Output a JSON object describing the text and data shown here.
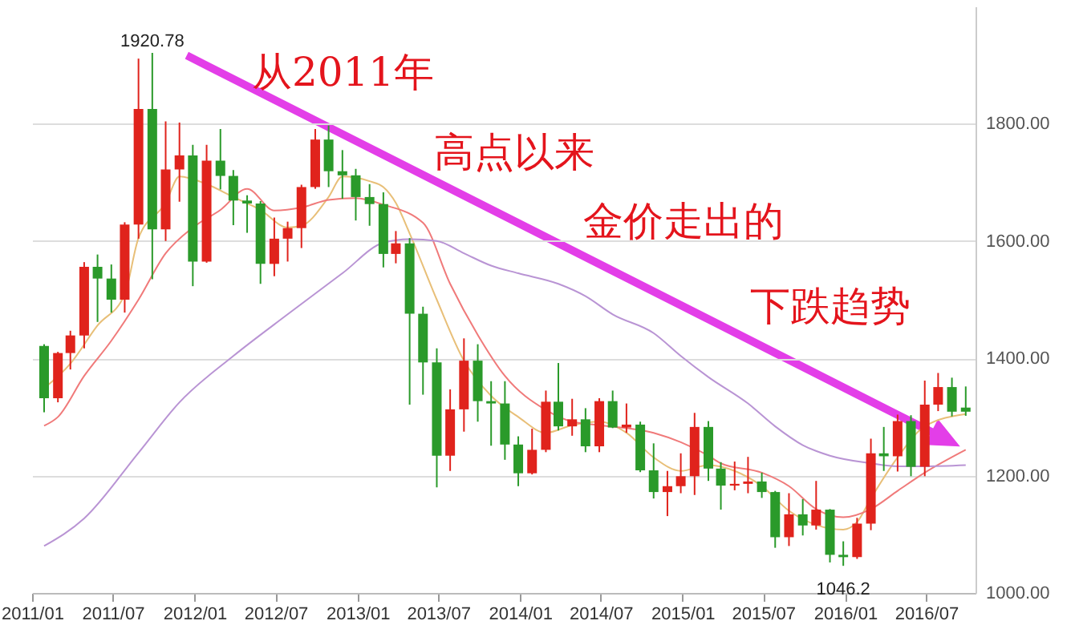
{
  "chart_data": {
    "type": "candlestick",
    "x": [
      "2011-01-28",
      "2011-02-28",
      "2011-03-28",
      "2011-04-28",
      "2011-05-28",
      "2011-06-28",
      "2011-07-28",
      "2011-08-28",
      "2011-09-28",
      "2011-10-28",
      "2011-11-28",
      "2011-12-28",
      "2012-01-28",
      "2012-02-28",
      "2012-03-28",
      "2012-04-28",
      "2012-05-28",
      "2012-06-28",
      "2012-07-28",
      "2012-08-28",
      "2012-09-28",
      "2012-10-28",
      "2012-11-28",
      "2012-12-28",
      "2013-01-28",
      "2013-02-28",
      "2013-03-28",
      "2013-04-28",
      "2013-05-28",
      "2013-06-28",
      "2013-07-28",
      "2013-08-28",
      "2013-09-28",
      "2013-10-28",
      "2013-11-28",
      "2013-12-28",
      "2014-01-28",
      "2014-02-28",
      "2014-03-28",
      "2014-04-28",
      "2014-05-28",
      "2014-06-28",
      "2014-07-28",
      "2014-08-28",
      "2014-09-28",
      "2014-10-28",
      "2014-11-28",
      "2014-12-28",
      "2015-01-28",
      "2015-02-28",
      "2015-03-28",
      "2015-04-28",
      "2015-05-28",
      "2015-06-28",
      "2015-07-28",
      "2015-08-28",
      "2015-09-28",
      "2015-10-28",
      "2015-11-28",
      "2015-12-28",
      "2016-01-28",
      "2016-02-28",
      "2016-03-28",
      "2016-04-28",
      "2016-05-28",
      "2016-06-28",
      "2016-07-28",
      "2016-08-28",
      "2016-09-28"
    ],
    "ohlc": [
      [
        1421,
        1424,
        1308,
        1332
      ],
      [
        1332,
        1411,
        1325,
        1409
      ],
      [
        1409,
        1447,
        1381,
        1439
      ],
      [
        1439,
        1564,
        1417,
        1556
      ],
      [
        1556,
        1577,
        1462,
        1536
      ],
      [
        1536,
        1560,
        1478,
        1500
      ],
      [
        1500,
        1632,
        1478,
        1628
      ],
      [
        1628,
        1911,
        1604,
        1825
      ],
      [
        1825,
        1920.78,
        1535,
        1620
      ],
      [
        1620,
        1804,
        1600,
        1722
      ],
      [
        1722,
        1802,
        1667,
        1746
      ],
      [
        1746,
        1764,
        1523,
        1565
      ],
      [
        1565,
        1764,
        1563,
        1737
      ],
      [
        1737,
        1791,
        1688,
        1711
      ],
      [
        1711,
        1721,
        1627,
        1669
      ],
      [
        1669,
        1678,
        1614,
        1664
      ],
      [
        1664,
        1668,
        1527,
        1561
      ],
      [
        1561,
        1640,
        1540,
        1604
      ],
      [
        1604,
        1633,
        1565,
        1622
      ],
      [
        1622,
        1696,
        1588,
        1692
      ],
      [
        1692,
        1791,
        1689,
        1773
      ],
      [
        1773,
        1797,
        1692,
        1719
      ],
      [
        1719,
        1755,
        1672,
        1712
      ],
      [
        1712,
        1723,
        1635,
        1675
      ],
      [
        1675,
        1697,
        1626,
        1663
      ],
      [
        1663,
        1683,
        1555,
        1578
      ],
      [
        1578,
        1617,
        1562,
        1596
      ],
      [
        1596,
        1605,
        1321,
        1476
      ],
      [
        1476,
        1488,
        1338,
        1393
      ],
      [
        1393,
        1417,
        1180,
        1234
      ],
      [
        1234,
        1347,
        1208,
        1313
      ],
      [
        1313,
        1434,
        1275,
        1396
      ],
      [
        1396,
        1424,
        1292,
        1327
      ],
      [
        1327,
        1361,
        1251,
        1323
      ],
      [
        1323,
        1361,
        1227,
        1253
      ],
      [
        1253,
        1267,
        1182,
        1204
      ],
      [
        1204,
        1280,
        1202,
        1244
      ],
      [
        1244,
        1345,
        1240,
        1326
      ],
      [
        1326,
        1392,
        1277,
        1284
      ],
      [
        1284,
        1331,
        1268,
        1296
      ],
      [
        1296,
        1315,
        1240,
        1250
      ],
      [
        1250,
        1332,
        1240,
        1327
      ],
      [
        1327,
        1345,
        1281,
        1282
      ],
      [
        1282,
        1323,
        1273,
        1287
      ],
      [
        1287,
        1292,
        1206,
        1209
      ],
      [
        1209,
        1255,
        1161,
        1172
      ],
      [
        1172,
        1208,
        1131,
        1182
      ],
      [
        1182,
        1238,
        1170,
        1199
      ],
      [
        1199,
        1307,
        1167,
        1283
      ],
      [
        1283,
        1293,
        1191,
        1212
      ],
      [
        1212,
        1223,
        1142,
        1183
      ],
      [
        1183,
        1224,
        1175,
        1186
      ],
      [
        1186,
        1232,
        1170,
        1190
      ],
      [
        1190,
        1205,
        1162,
        1172
      ],
      [
        1172,
        1174,
        1077,
        1095
      ],
      [
        1095,
        1170,
        1080,
        1134
      ],
      [
        1134,
        1160,
        1098,
        1115
      ],
      [
        1115,
        1191,
        1108,
        1142
      ],
      [
        1142,
        1143,
        1052,
        1065
      ],
      [
        1065,
        1088,
        1046.2,
        1061
      ],
      [
        1061,
        1128,
        1058,
        1118
      ],
      [
        1118,
        1263,
        1107,
        1238
      ],
      [
        1238,
        1283,
        1208,
        1233
      ],
      [
        1233,
        1304,
        1207,
        1293
      ],
      [
        1293,
        1303,
        1199,
        1215
      ],
      [
        1215,
        1362,
        1199,
        1321
      ],
      [
        1321,
        1375,
        1310,
        1351
      ],
      [
        1351,
        1367,
        1301,
        1309
      ],
      [
        1316,
        1352,
        1302,
        1309
      ]
    ],
    "colors": [
      "#2a9a2a",
      "#e0231c",
      "#e0231c",
      "#e0231c",
      "#2a9a2a",
      "#2a9a2a",
      "#e0231c",
      "#e0231c",
      "#2a9a2a",
      "#e0231c",
      "#e0231c",
      "#2a9a2a",
      "#e0231c",
      "#2a9a2a",
      "#2a9a2a",
      "#2a9a2a",
      "#2a9a2a",
      "#e0231c",
      "#e0231c",
      "#e0231c",
      "#e0231c",
      "#2a9a2a",
      "#2a9a2a",
      "#2a9a2a",
      "#2a9a2a",
      "#2a9a2a",
      "#e0231c",
      "#2a9a2a",
      "#2a9a2a",
      "#2a9a2a",
      "#e0231c",
      "#e0231c",
      "#2a9a2a",
      "#2a9a2a",
      "#2a9a2a",
      "#2a9a2a",
      "#e0231c",
      "#e0231c",
      "#2a9a2a",
      "#e0231c",
      "#2a9a2a",
      "#e0231c",
      "#2a9a2a",
      "#e0231c",
      "#2a9a2a",
      "#2a9a2a",
      "#e0231c",
      "#e0231c",
      "#e0231c",
      "#2a9a2a",
      "#2a9a2a",
      "#e0231c",
      "#e0231c",
      "#2a9a2a",
      "#2a9a2a",
      "#e0231c",
      "#2a9a2a",
      "#e0231c",
      "#2a9a2a",
      "#2a9a2a",
      "#e0231c",
      "#e0231c",
      "#2a9a2a",
      "#e0231c",
      "#2a9a2a",
      "#e0231c",
      "#e0231c",
      "#2a9a2a",
      "#2a9a2a"
    ],
    "series": [
      {
        "type": "line",
        "color": "#e8bf78",
        "x": [
          "2011-01-28",
          "2011-03-28",
          "2011-05-28",
          "2011-07-28",
          "2011-08-28",
          "2011-10-28",
          "2011-11-28",
          "2012-01-28",
          "2012-03-28",
          "2012-05-28",
          "2012-07-28",
          "2012-08-28",
          "2012-10-28",
          "2012-11-28",
          "2013-01-28",
          "2013-02-28",
          "2013-03-28",
          "2013-04-28",
          "2013-06-28",
          "2013-08-28",
          "2013-10-28",
          "2013-12-28",
          "2014-02-28",
          "2014-04-28",
          "2014-06-28",
          "2014-08-28",
          "2014-10-28",
          "2014-12-28",
          "2015-02-28",
          "2015-04-28",
          "2015-06-28",
          "2015-08-28",
          "2015-10-28",
          "2015-12-28",
          "2016-01-28",
          "2016-02-28",
          "2016-04-28",
          "2016-06-28",
          "2016-09-28"
        ],
        "values": [
          1349,
          1391,
          1456,
          1509,
          1605,
          1665,
          1710,
          1697,
          1675,
          1653,
          1623,
          1626,
          1675,
          1710,
          1702,
          1692,
          1665,
          1613,
          1500,
          1396,
          1336,
          1300,
          1273,
          1286,
          1292,
          1273,
          1231,
          1208,
          1218,
          1208,
          1182,
          1140,
          1116,
          1108,
          1121,
          1161,
          1231,
          1284,
          1305
        ]
      },
      {
        "type": "line",
        "color": "#f07a7a",
        "x": [
          "2011-01-28",
          "2011-02-28",
          "2011-04-28",
          "2011-06-28",
          "2011-08-28",
          "2011-10-28",
          "2011-12-28",
          "2012-02-28",
          "2012-04-28",
          "2012-06-28",
          "2012-08-28",
          "2012-10-28",
          "2012-12-28",
          "2013-02-28",
          "2013-05-28",
          "2013-07-28",
          "2013-09-28",
          "2013-11-28",
          "2014-02-28",
          "2014-04-28",
          "2014-06-28",
          "2014-10-28",
          "2014-12-28",
          "2015-02-28",
          "2015-03-28",
          "2015-06-28",
          "2015-08-28",
          "2015-10-28",
          "2015-12-28",
          "2016-02-28",
          "2016-04-28",
          "2016-06-28",
          "2016-09-28"
        ],
        "values": [
          1285,
          1300,
          1370,
          1430,
          1500,
          1579,
          1623,
          1653,
          1689,
          1652,
          1657,
          1670,
          1673,
          1662,
          1631,
          1527,
          1440,
          1370,
          1312,
          1292,
          1286,
          1273,
          1257,
          1234,
          1221,
          1205,
          1182,
          1143,
          1129,
          1143,
          1174,
          1205,
          1244
        ]
      },
      {
        "type": "line",
        "color": "#b994d4",
        "x": [
          "2011-01-28",
          "2011-04-28",
          "2011-08-28",
          "2011-11-28",
          "2012-03-28",
          "2012-07-28",
          "2012-11-28",
          "2013-02-28",
          "2013-04-28",
          "2013-06-28",
          "2013-08-28",
          "2013-10-28",
          "2013-12-28",
          "2014-03-28",
          "2014-05-28",
          "2014-07-28",
          "2014-10-28",
          "2014-12-28",
          "2015-02-28",
          "2015-05-28",
          "2015-07-28",
          "2015-09-28",
          "2015-11-28",
          "2016-02-28",
          "2016-04-28",
          "2016-06-28",
          "2016-09-28"
        ],
        "values": [
          1080,
          1127,
          1239,
          1325,
          1404,
          1475,
          1545,
          1597,
          1603,
          1600,
          1579,
          1558,
          1545,
          1527,
          1506,
          1475,
          1443,
          1404,
          1368,
          1323,
          1284,
          1252,
          1234,
          1221,
          1216,
          1216,
          1218
        ]
      }
    ],
    "xlim": [
      "2011-01-01",
      "2016-10-20"
    ],
    "xticks": [
      {
        "value": "2011-01-01",
        "label": "2011/01"
      },
      {
        "value": "2011-07-01",
        "label": "2011/07"
      },
      {
        "value": "2012-01-01",
        "label": "2012/01"
      },
      {
        "value": "2012-07-01",
        "label": "2012/07"
      },
      {
        "value": "2013-01-01",
        "label": "2013/01"
      },
      {
        "value": "2013-07-01",
        "label": "2013/07"
      },
      {
        "value": "2014-01-01",
        "label": "2014/01"
      },
      {
        "value": "2014-07-01",
        "label": "2014/07"
      },
      {
        "value": "2015-01-01",
        "label": "2015/01"
      },
      {
        "value": "2015-07-01",
        "label": "2015/07"
      },
      {
        "value": "2016-01-01",
        "label": "2016/01"
      },
      {
        "value": "2016-07-01",
        "label": "2016/07"
      }
    ],
    "ylim": [
      1000,
      2000
    ],
    "yticks": [
      {
        "value": 1000,
        "label": "1000.00"
      },
      {
        "value": 1200,
        "label": "1200.00"
      },
      {
        "value": 1400,
        "label": "1400.00"
      },
      {
        "value": 1600,
        "label": "1600.00"
      },
      {
        "value": 1800,
        "label": "1800.00"
      }
    ],
    "grid": "y",
    "annotations": [
      {
        "text": "1920.78",
        "x": "2011-09-28",
        "y": 1920.78
      },
      {
        "text": "1046.2",
        "x": "2015-12-28",
        "y": 1046.2
      },
      "从2011年",
      "高点以来",
      "金价走出的",
      "下跌趋势"
    ]
  }
}
